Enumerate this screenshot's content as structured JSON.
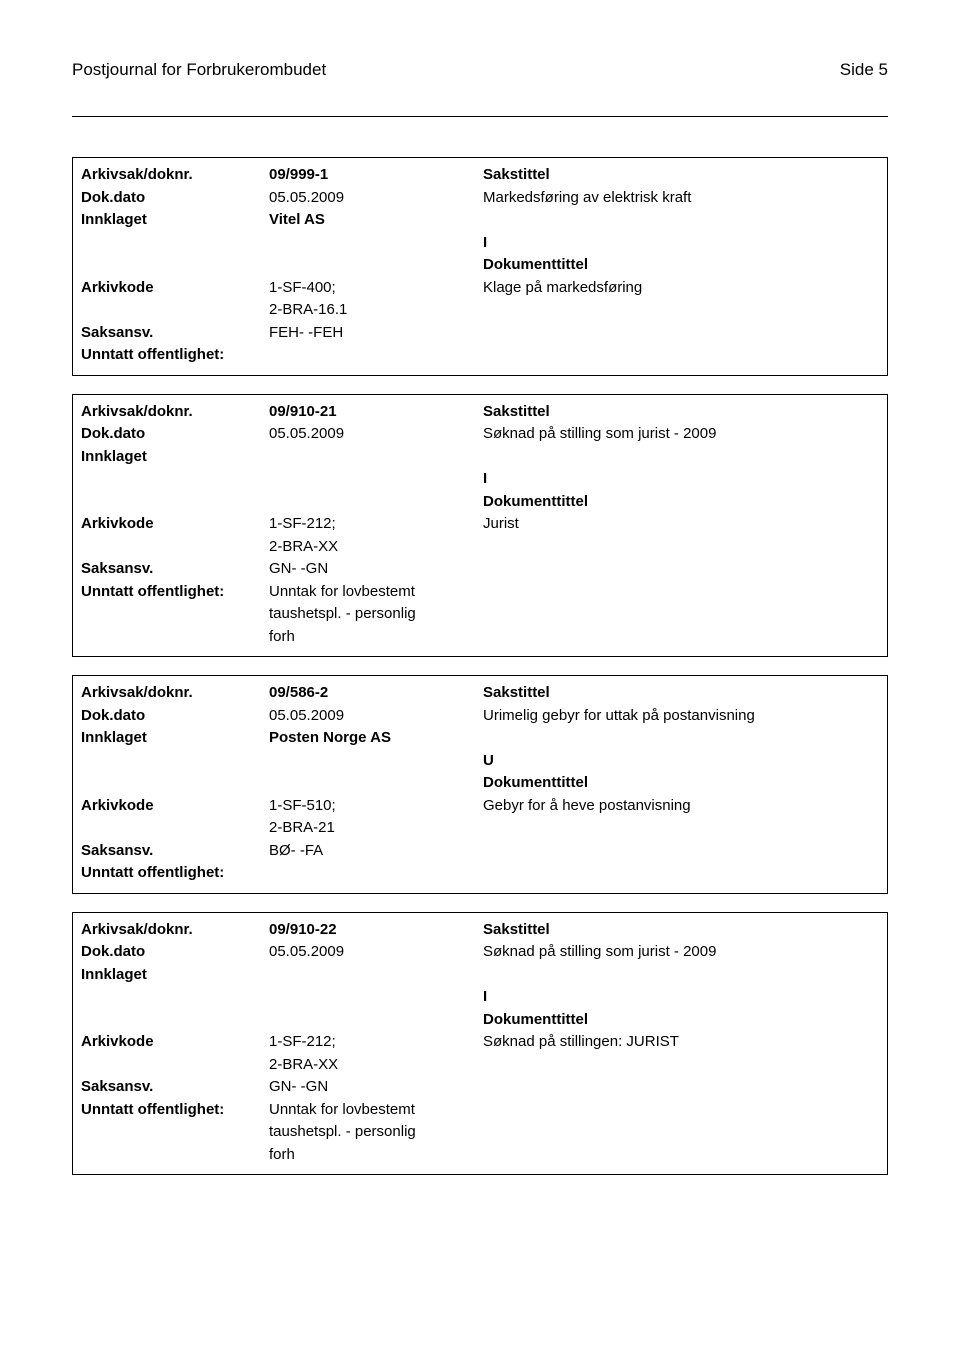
{
  "header": {
    "title": "Postjournal for Forbrukerombudet",
    "page_label": "Side 5"
  },
  "labels": {
    "arkivsak_doknr": "Arkivsak/doknr.",
    "dok_dato": "Dok.dato",
    "innklaget": "Innklaget",
    "arkivkode": "Arkivkode",
    "saksansv": "Saksansv.",
    "unntatt_off": "Unntatt offentlighet:",
    "sakstittel": "Sakstittel",
    "dokumenttittel": "Dokumenttittel"
  },
  "records": [
    {
      "doknr": "09/999-1",
      "dato": "05.05.2009",
      "sakstittel_text": "Markedsføring av elektrisk kraft",
      "innklaget_value": "Vitel  AS",
      "direction": "I",
      "arkivkode_top": "1-SF-400;",
      "arkivkode_bottom": "2-BRA-16.1",
      "doktittel_text": "Klage på markedsføring",
      "saksansv_value": "FEH- -FEH",
      "unntatt_value": ""
    },
    {
      "doknr": "09/910-21",
      "dato": "05.05.2009",
      "sakstittel_text": "Søknad på stilling som jurist - 2009",
      "innklaget_value": "",
      "direction": "I",
      "arkivkode_top": "1-SF-212;",
      "arkivkode_bottom": "2-BRA-XX",
      "doktittel_text": "Jurist",
      "saksansv_value": "GN- -GN",
      "unntatt_l1": "Unntak for lovbestemt",
      "unntatt_l2": "taushetspl. - personlig",
      "unntatt_l3": "forh"
    },
    {
      "doknr": "09/586-2",
      "dato": "05.05.2009",
      "sakstittel_text": "Urimelig gebyr for uttak på postanvisning",
      "innklaget_value": "Posten Norge AS",
      "direction": "U",
      "arkivkode_top": "1-SF-510;",
      "arkivkode_bottom": "2-BRA-21",
      "doktittel_text": "Gebyr for å heve postanvisning",
      "saksansv_value": "BØ- -FA",
      "unntatt_value": ""
    },
    {
      "doknr": "09/910-22",
      "dato": "05.05.2009",
      "sakstittel_text": "Søknad på stilling som jurist - 2009",
      "innklaget_value": "",
      "direction": "I",
      "arkivkode_top": "1-SF-212;",
      "arkivkode_bottom": "2-BRA-XX",
      "doktittel_text": "Søknad på stillingen: JURIST",
      "saksansv_value": "GN- -GN",
      "unntatt_l1": "Unntak for lovbestemt",
      "unntatt_l2": "taushetspl. - personlig",
      "unntatt_l3": "forh"
    }
  ]
}
